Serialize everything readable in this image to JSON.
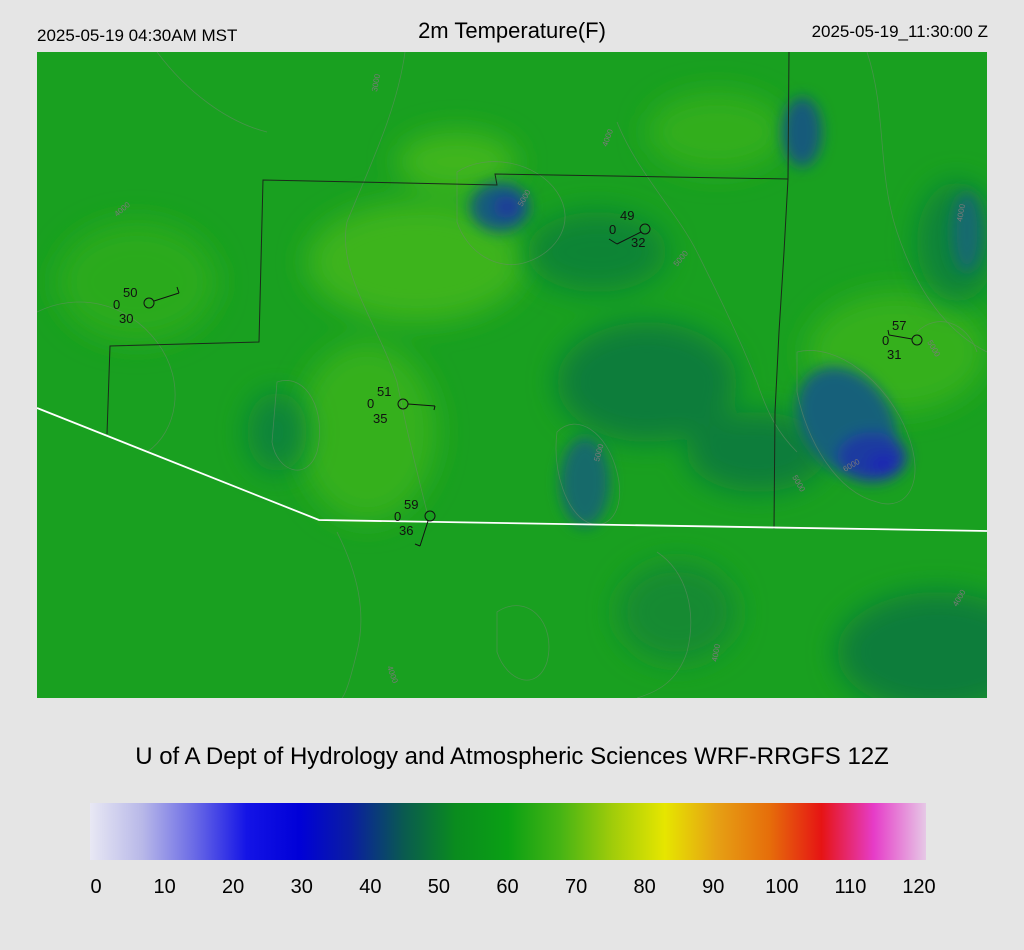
{
  "header": {
    "valid_local": "2025-05-19 04:30AM MST",
    "title": "2m Temperature(F)",
    "valid_utc": "2025-05-19_11:30:00 Z"
  },
  "credit": "U of A Dept of Hydrology and Atmospheric Sciences WRF-RRGFS 12Z",
  "colorbar": {
    "ticks": [
      "0",
      "10",
      "20",
      "30",
      "40",
      "50",
      "60",
      "70",
      "80",
      "90",
      "100",
      "110",
      "120"
    ],
    "colors": [
      "#e8e8f4",
      "#b8b8e8",
      "#6a6ae6",
      "#1414e6",
      "#0000d8",
      "#0a1ea0",
      "#0a5a50",
      "#0a8c1e",
      "#0aa014",
      "#46b414",
      "#a0cc0a",
      "#e6e600",
      "#e6a014",
      "#e66e0a",
      "#e61414",
      "#e63cc8",
      "#e6c8e6"
    ]
  },
  "stations": [
    {
      "id": "stn-1",
      "temp": "50",
      "dew": "30",
      "vis": "0"
    },
    {
      "id": "stn-2",
      "temp": "49",
      "dew": "32",
      "vis": "0"
    },
    {
      "id": "stn-3",
      "temp": "51",
      "dew": "35",
      "vis": "0"
    },
    {
      "id": "stn-4",
      "temp": "59",
      "dew": "36",
      "vis": "0"
    },
    {
      "id": "stn-5",
      "temp": "57",
      "dew": "31",
      "vis": "0"
    }
  ],
  "contour_labels": [
    "3000",
    "4000",
    "5000",
    "6000"
  ]
}
